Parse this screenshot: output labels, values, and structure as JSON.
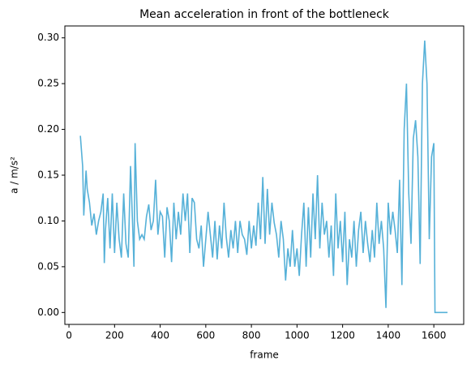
{
  "chart_data": {
    "type": "line",
    "title": "Mean acceleration in front of the bottleneck",
    "xlabel": "frame",
    "ylabel": "a / m/s²",
    "x": [
      50,
      60,
      65,
      75,
      80,
      90,
      100,
      110,
      120,
      130,
      140,
      150,
      155,
      160,
      170,
      180,
      190,
      200,
      210,
      220,
      230,
      240,
      250,
      260,
      270,
      280,
      285,
      290,
      300,
      310,
      320,
      330,
      340,
      350,
      360,
      370,
      380,
      390,
      400,
      410,
      420,
      430,
      440,
      450,
      460,
      470,
      480,
      490,
      500,
      510,
      520,
      530,
      540,
      550,
      560,
      570,
      580,
      590,
      600,
      610,
      620,
      630,
      640,
      650,
      660,
      670,
      680,
      690,
      700,
      710,
      720,
      730,
      740,
      750,
      760,
      770,
      780,
      790,
      800,
      810,
      820,
      830,
      840,
      850,
      860,
      870,
      880,
      890,
      900,
      910,
      920,
      930,
      940,
      950,
      960,
      970,
      980,
      990,
      1000,
      1010,
      1020,
      1030,
      1040,
      1050,
      1060,
      1070,
      1080,
      1090,
      1100,
      1110,
      1120,
      1130,
      1140,
      1150,
      1160,
      1170,
      1180,
      1190,
      1200,
      1210,
      1220,
      1230,
      1240,
      1250,
      1260,
      1270,
      1280,
      1290,
      1300,
      1310,
      1320,
      1330,
      1340,
      1350,
      1360,
      1370,
      1380,
      1390,
      1400,
      1410,
      1420,
      1430,
      1440,
      1450,
      1460,
      1470,
      1480,
      1490,
      1500,
      1510,
      1520,
      1530,
      1540,
      1550,
      1560,
      1570,
      1580,
      1590,
      1600,
      1605,
      1660
    ],
    "series": [
      {
        "name": "mean acceleration",
        "color": "#56b1d8",
        "values": [
          0.193,
          0.16,
          0.106,
          0.155,
          0.135,
          0.12,
          0.095,
          0.108,
          0.085,
          0.1,
          0.11,
          0.13,
          0.054,
          0.09,
          0.125,
          0.07,
          0.13,
          0.065,
          0.12,
          0.08,
          0.06,
          0.13,
          0.075,
          0.06,
          0.16,
          0.09,
          0.05,
          0.185,
          0.1,
          0.08,
          0.085,
          0.08,
          0.105,
          0.118,
          0.09,
          0.1,
          0.145,
          0.085,
          0.11,
          0.105,
          0.06,
          0.115,
          0.1,
          0.055,
          0.12,
          0.08,
          0.11,
          0.085,
          0.13,
          0.1,
          0.13,
          0.065,
          0.125,
          0.12,
          0.08,
          0.07,
          0.095,
          0.05,
          0.08,
          0.11,
          0.085,
          0.06,
          0.1,
          0.058,
          0.095,
          0.07,
          0.12,
          0.082,
          0.06,
          0.09,
          0.07,
          0.1,
          0.065,
          0.1,
          0.085,
          0.08,
          0.063,
          0.1,
          0.07,
          0.095,
          0.073,
          0.12,
          0.08,
          0.148,
          0.075,
          0.135,
          0.085,
          0.12,
          0.098,
          0.085,
          0.06,
          0.1,
          0.08,
          0.035,
          0.07,
          0.05,
          0.09,
          0.05,
          0.07,
          0.04,
          0.085,
          0.12,
          0.05,
          0.115,
          0.06,
          0.13,
          0.08,
          0.15,
          0.07,
          0.12,
          0.085,
          0.1,
          0.06,
          0.095,
          0.04,
          0.13,
          0.07,
          0.1,
          0.055,
          0.11,
          0.03,
          0.08,
          0.06,
          0.1,
          0.05,
          0.09,
          0.11,
          0.065,
          0.1,
          0.075,
          0.055,
          0.09,
          0.06,
          0.12,
          0.075,
          0.1,
          0.07,
          0.005,
          0.12,
          0.085,
          0.11,
          0.09,
          0.065,
          0.145,
          0.03,
          0.2,
          0.25,
          0.13,
          0.075,
          0.19,
          0.21,
          0.17,
          0.053,
          0.25,
          0.297,
          0.25,
          0.08,
          0.17,
          0.185,
          0.0,
          0.0
        ]
      }
    ],
    "xlim": [
      -18,
      1731
    ],
    "ylim": [
      -0.013,
      0.313
    ],
    "xticks": [
      0,
      200,
      400,
      600,
      800,
      1000,
      1200,
      1400,
      1600
    ],
    "yticks": [
      {
        "value": 0,
        "label": "0.00"
      },
      0.05,
      {
        "value": 0.1,
        "label": "0.10"
      },
      0.15,
      {
        "value": 0.2,
        "label": "0.20"
      },
      0.25,
      {
        "value": 0.3,
        "label": "0.30"
      }
    ]
  }
}
